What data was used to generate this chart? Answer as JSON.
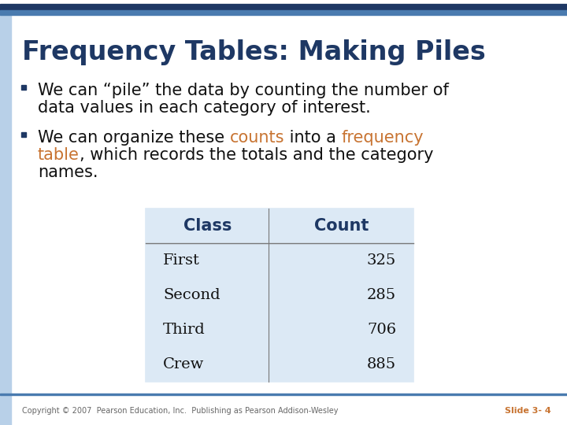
{
  "title": "Frequency Tables: Making Piles",
  "title_color": "#1E3864",
  "title_fontsize": 24,
  "background_color": "#FFFFFF",
  "top_bar_dark": "#1E3864",
  "top_bar_light": "#4A7BAF",
  "left_bar_color": "#B8D0E8",
  "bullet_color": "#1E3864",
  "text_color": "#111111",
  "orange_color": "#C87432",
  "bullet1_line1": "We can “pile” the data by counting the number of",
  "bullet1_line2": "data values in each category of interest.",
  "bullet2_seg1": "We can organize these ",
  "bullet2_seg2": "counts",
  "bullet2_seg3": " into a ",
  "bullet2_seg4": "frequency",
  "bullet2_line2_seg1": "table",
  "bullet2_line2_seg2": ", which records the totals and the category",
  "bullet2_line3": "names.",
  "table_header": [
    "Class",
    "Count"
  ],
  "table_header_color": "#1E3864",
  "table_rows": [
    [
      "First",
      "325"
    ],
    [
      "Second",
      "285"
    ],
    [
      "Third",
      "706"
    ],
    [
      "Crew",
      "885"
    ]
  ],
  "table_bg_color": "#DCE9F5",
  "footer_text": "Copyright © 2007  Pearson Education, Inc.  Publishing as Pearson Addison-Wesley",
  "footer_slide": "Slide 3- 4",
  "footer_slide_color": "#C87432",
  "text_fontsize": 15,
  "table_fontsize": 14
}
